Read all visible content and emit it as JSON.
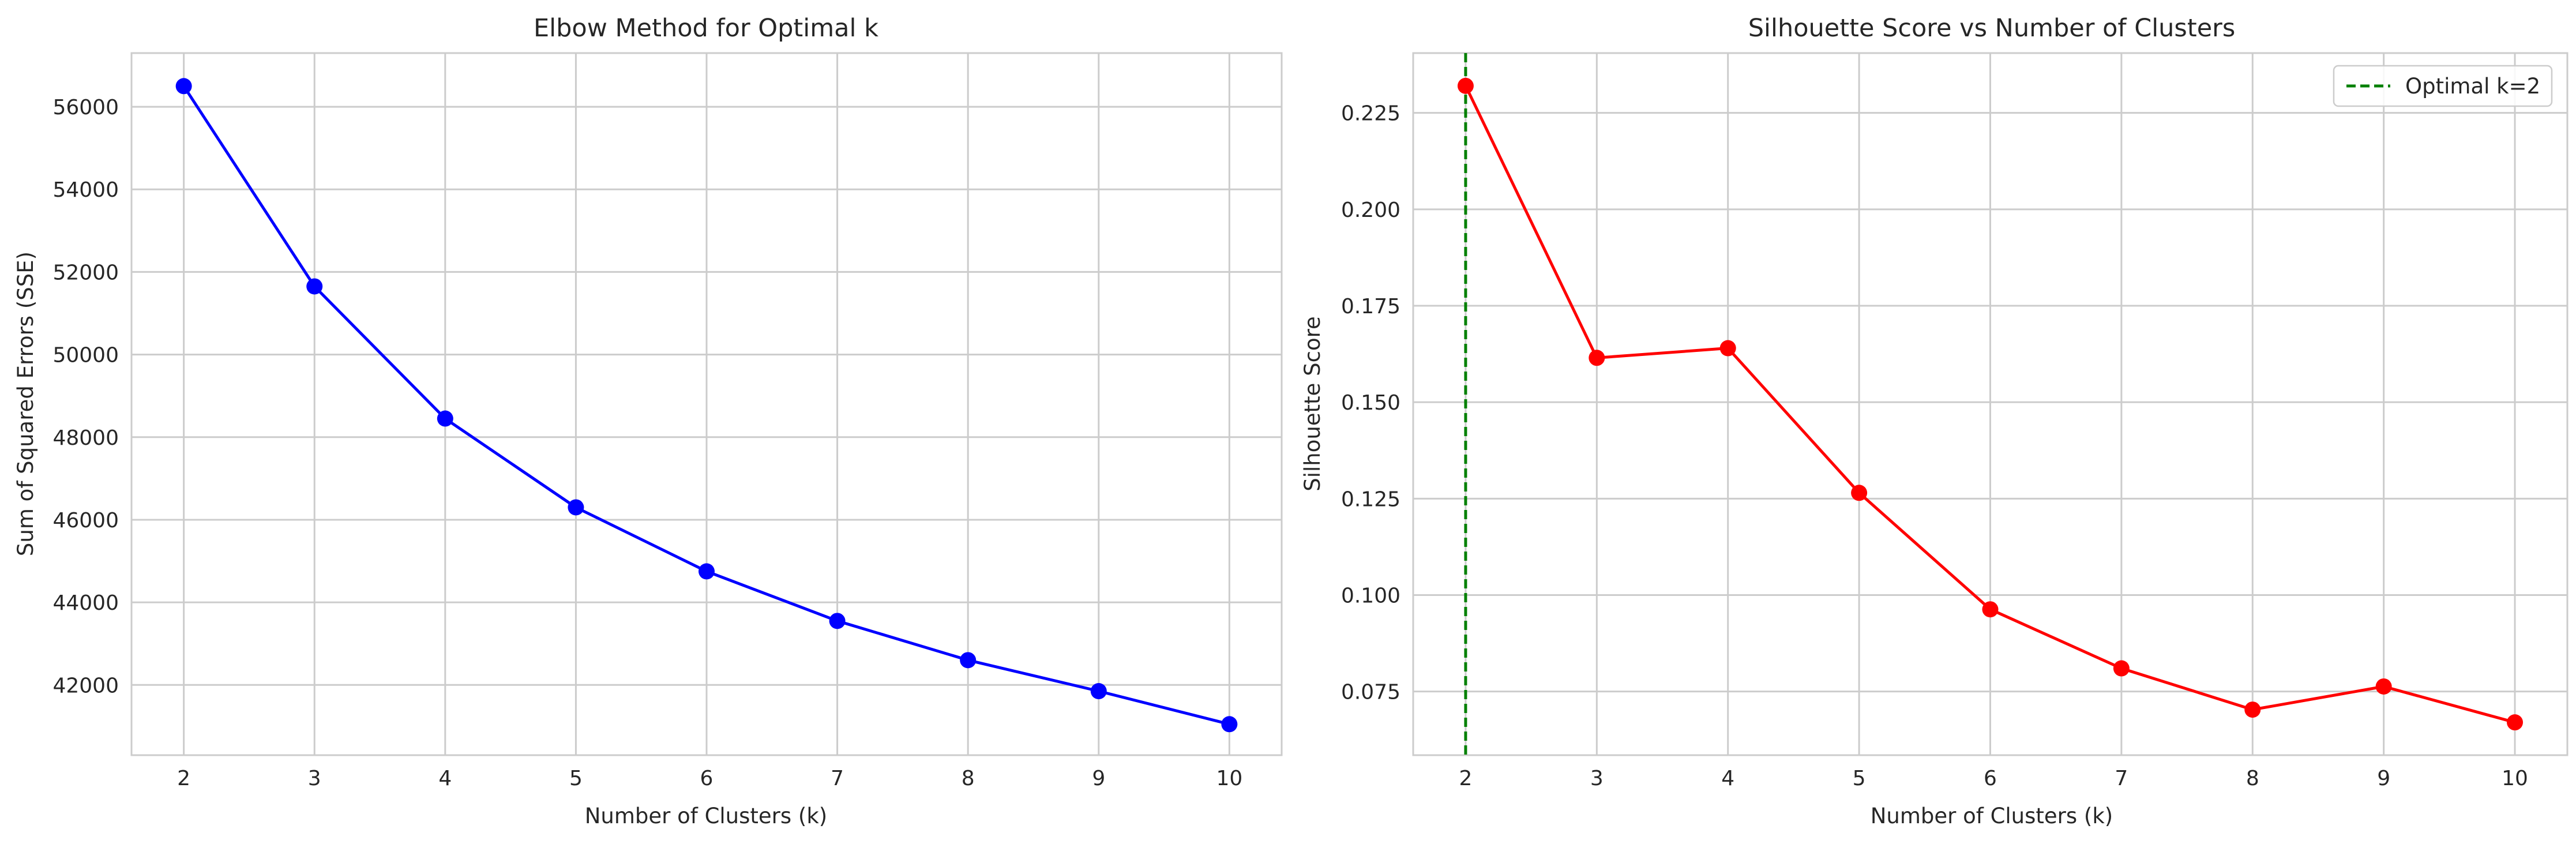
{
  "chart_data": [
    {
      "type": "line",
      "title": "Elbow Method for Optimal k",
      "xlabel": "Number of Clusters (k)",
      "ylabel": "Sum of Squared Errors (SSE)",
      "x": [
        2,
        3,
        4,
        5,
        6,
        7,
        8,
        9,
        10
      ],
      "series": [
        {
          "values": [
            56500,
            51650,
            48450,
            46300,
            44750,
            43550,
            42600,
            41850,
            41050
          ],
          "color": "#0000ff",
          "marker": "circle"
        }
      ],
      "xlim": [
        1.6,
        10.4
      ],
      "ylim": [
        40300,
        57300
      ],
      "xticks": [
        2,
        3,
        4,
        5,
        6,
        7,
        8,
        9,
        10
      ],
      "yticks": [
        42000,
        44000,
        46000,
        48000,
        50000,
        52000,
        54000,
        56000
      ],
      "grid": true
    },
    {
      "type": "line",
      "title": "Silhouette Score vs Number of Clusters",
      "xlabel": "Number of Clusters (k)",
      "ylabel": "Silhouette Score",
      "x": [
        2,
        3,
        4,
        5,
        6,
        7,
        8,
        9,
        10
      ],
      "series": [
        {
          "values": [
            0.232,
            0.1615,
            0.164,
            0.1265,
            0.0963,
            0.081,
            0.0703,
            0.0763,
            0.067
          ],
          "color": "#ff0000",
          "marker": "circle"
        }
      ],
      "vline": {
        "x": 2,
        "label": "Optimal k=2",
        "color": "#008000",
        "style": "dashed"
      },
      "legend": {
        "position": "top-right",
        "entries": [
          "Optimal k=2"
        ]
      },
      "xlim": [
        1.6,
        10.4
      ],
      "ylim": [
        0.0585,
        0.2405
      ],
      "xticks": [
        2,
        3,
        4,
        5,
        6,
        7,
        8,
        9,
        10
      ],
      "yticks": [
        "0.075",
        "0.100",
        "0.125",
        "0.150",
        "0.175",
        "0.200",
        "0.225"
      ],
      "grid": true
    }
  ]
}
